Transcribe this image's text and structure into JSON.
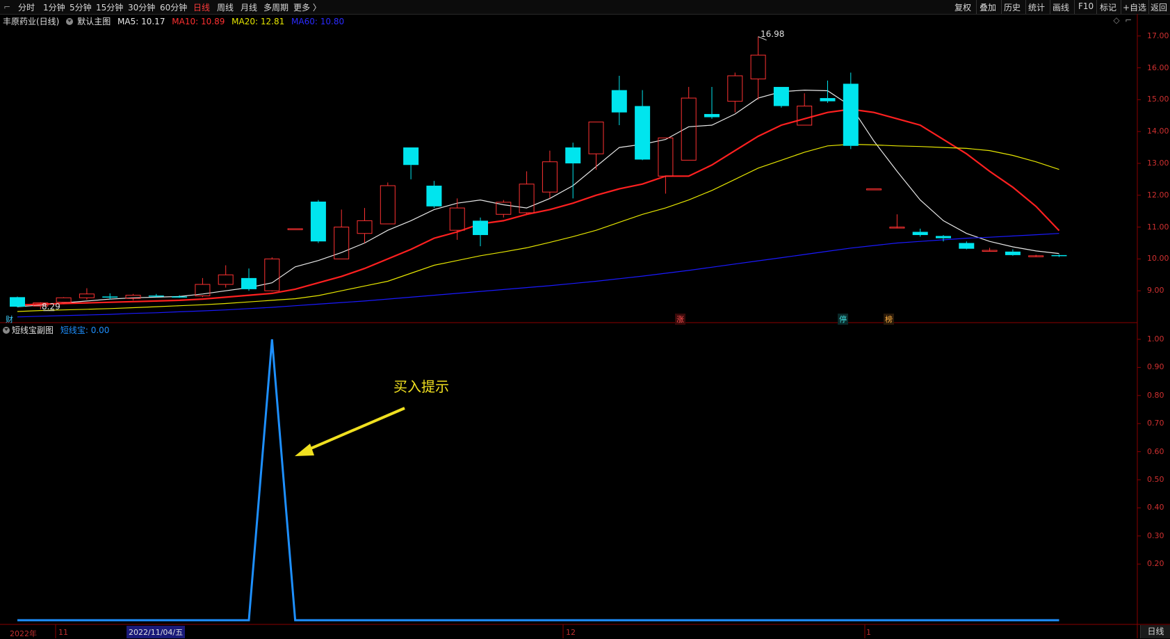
{
  "toolbar": {
    "periods": [
      "分时",
      "1分钟",
      "5分钟",
      "15分钟",
      "30分钟",
      "60分钟",
      "日线",
      "周线",
      "月线",
      "多周期",
      "更多 〉"
    ],
    "active_period": "日线",
    "right_tools": [
      "复权",
      "叠加",
      "历史",
      "统计",
      "画线",
      "F10",
      "标记",
      "+自选",
      "返回"
    ]
  },
  "main_chart": {
    "title": "丰原药业(日线)",
    "template": "默认主图",
    "ma5": "MA5: 10.17",
    "ma10": "MA10: 10.89",
    "ma20": "MA20: 12.81",
    "ma60": "MA60: 10.80",
    "high_label": "16.98",
    "low_label": "8.29",
    "y_ticks": [
      "17.00",
      "16.00",
      "15.00",
      "14.00",
      "13.00",
      "12.00",
      "11.00",
      "10.00",
      "9.00"
    ],
    "markers": {
      "cai": "财",
      "zhang": "涨",
      "ting": "停",
      "bang": "榜"
    }
  },
  "sub_chart": {
    "title": "短线宝副图",
    "value_label": "短线宝: 0.00",
    "y_ticks": [
      "1.00",
      "0.90",
      "0.80",
      "0.70",
      "0.60",
      "0.50",
      "0.40",
      "0.30",
      "0.20"
    ],
    "annotation": "买入提示"
  },
  "date_axis": {
    "year": "2022年",
    "m11": "11",
    "cursor_date": "2022/11/04/五",
    "m12": "12",
    "m1": "1"
  },
  "period_tab": "日线",
  "colors": {
    "up": "#ff3232",
    "down": "#00e5ee",
    "ma5": "#e8e8e8",
    "ma10": "#ff2020",
    "ma20": "#e6e600",
    "ma60": "#1a1aff",
    "indicator": "#1e90ff"
  },
  "chart_data": [
    {
      "type": "candlestick",
      "title": "丰原药业(日线)",
      "ylim": [
        8.0,
        17.3
      ],
      "candles": [
        {
          "o": 8.8,
          "h": 8.82,
          "l": 8.48,
          "c": 8.5
        },
        {
          "o": 8.52,
          "h": 8.64,
          "l": 8.42,
          "c": 8.62
        },
        {
          "o": 8.64,
          "h": 8.8,
          "l": 8.58,
          "c": 8.78
        },
        {
          "o": 8.78,
          "h": 9.08,
          "l": 8.72,
          "c": 8.9
        },
        {
          "o": 8.82,
          "h": 8.92,
          "l": 8.72,
          "c": 8.8
        },
        {
          "o": 8.76,
          "h": 8.9,
          "l": 8.7,
          "c": 8.86
        },
        {
          "o": 8.85,
          "h": 8.9,
          "l": 8.8,
          "c": 8.83
        },
        {
          "o": 8.82,
          "h": 8.86,
          "l": 8.78,
          "c": 8.8
        },
        {
          "o": 8.84,
          "h": 9.4,
          "l": 8.8,
          "c": 9.2
        },
        {
          "o": 9.2,
          "h": 9.8,
          "l": 9.1,
          "c": 9.5
        },
        {
          "o": 9.4,
          "h": 9.7,
          "l": 9.0,
          "c": 9.05
        },
        {
          "o": 9.0,
          "h": 10.05,
          "l": 8.98,
          "c": 10.0
        },
        {
          "o": 10.95,
          "h": 10.95,
          "l": 10.95,
          "c": 10.95
        },
        {
          "o": 11.8,
          "h": 11.85,
          "l": 10.5,
          "c": 10.55
        },
        {
          "o": 10.0,
          "h": 11.55,
          "l": 10.0,
          "c": 11.0
        },
        {
          "o": 10.8,
          "h": 11.6,
          "l": 10.5,
          "c": 11.2
        },
        {
          "o": 11.1,
          "h": 12.4,
          "l": 11.1,
          "c": 12.3
        },
        {
          "o": 13.5,
          "h": 13.5,
          "l": 12.5,
          "c": 12.95
        },
        {
          "o": 12.3,
          "h": 12.45,
          "l": 11.6,
          "c": 11.65
        },
        {
          "o": 10.9,
          "h": 11.9,
          "l": 10.6,
          "c": 11.6
        },
        {
          "o": 11.2,
          "h": 11.3,
          "l": 10.4,
          "c": 10.75
        },
        {
          "o": 11.4,
          "h": 11.85,
          "l": 11.3,
          "c": 11.78
        },
        {
          "o": 11.45,
          "h": 12.75,
          "l": 11.4,
          "c": 12.35
        },
        {
          "o": 12.1,
          "h": 13.4,
          "l": 11.9,
          "c": 13.05
        },
        {
          "o": 13.5,
          "h": 13.65,
          "l": 11.9,
          "c": 13.0
        },
        {
          "o": 13.3,
          "h": 14.3,
          "l": 12.8,
          "c": 14.3
        },
        {
          "o": 15.3,
          "h": 15.75,
          "l": 14.2,
          "c": 14.6
        },
        {
          "o": 14.8,
          "h": 15.3,
          "l": 13.1,
          "c": 13.12
        },
        {
          "o": 12.6,
          "h": 13.8,
          "l": 12.05,
          "c": 13.8
        },
        {
          "o": 13.1,
          "h": 15.4,
          "l": 13.1,
          "c": 15.05
        },
        {
          "o": 14.55,
          "h": 15.4,
          "l": 14.4,
          "c": 14.45
        },
        {
          "o": 14.95,
          "h": 15.85,
          "l": 14.6,
          "c": 15.75
        },
        {
          "o": 15.65,
          "h": 16.98,
          "l": 15.0,
          "c": 16.4
        },
        {
          "o": 15.4,
          "h": 15.4,
          "l": 14.75,
          "c": 14.8
        },
        {
          "o": 14.2,
          "h": 15.2,
          "l": 14.2,
          "c": 14.8
        },
        {
          "o": 15.05,
          "h": 15.6,
          "l": 14.9,
          "c": 14.95
        },
        {
          "o": 15.5,
          "h": 15.85,
          "l": 13.45,
          "c": 13.55
        },
        {
          "o": 12.2,
          "h": 12.2,
          "l": 12.2,
          "c": 12.2
        },
        {
          "o": 11.0,
          "h": 11.4,
          "l": 10.98,
          "c": 11.0
        },
        {
          "o": 10.85,
          "h": 10.95,
          "l": 10.7,
          "c": 10.75
        },
        {
          "o": 10.72,
          "h": 10.75,
          "l": 10.55,
          "c": 10.65
        },
        {
          "o": 10.5,
          "h": 10.55,
          "l": 10.3,
          "c": 10.32
        },
        {
          "o": 10.27,
          "h": 10.35,
          "l": 10.25,
          "c": 10.27
        },
        {
          "o": 10.23,
          "h": 10.3,
          "l": 10.1,
          "c": 10.12
        },
        {
          "o": 10.1,
          "h": 10.13,
          "l": 10.07,
          "c": 10.1
        },
        {
          "o": 10.12,
          "h": 10.14,
          "l": 10.06,
          "c": 10.1
        }
      ],
      "series": [
        {
          "name": "MA5",
          "values": [
            8.5,
            8.55,
            8.62,
            8.68,
            8.74,
            8.78,
            8.8,
            8.82,
            8.9,
            9.0,
            9.1,
            9.25,
            9.75,
            9.95,
            10.2,
            10.5,
            10.9,
            11.2,
            11.55,
            11.75,
            11.85,
            11.7,
            11.6,
            11.9,
            12.3,
            12.9,
            13.5,
            13.6,
            13.75,
            14.15,
            14.2,
            14.55,
            15.05,
            15.25,
            15.3,
            15.28,
            14.8,
            13.7,
            12.75,
            11.85,
            11.2,
            10.8,
            10.55,
            10.38,
            10.25,
            10.17
          ]
        },
        {
          "name": "MA10",
          "values": [
            8.55,
            8.58,
            8.6,
            8.62,
            8.64,
            8.66,
            8.68,
            8.7,
            8.74,
            8.8,
            8.86,
            8.92,
            9.05,
            9.25,
            9.45,
            9.7,
            10.0,
            10.3,
            10.65,
            10.85,
            11.1,
            11.2,
            11.4,
            11.55,
            11.75,
            12.0,
            12.2,
            12.35,
            12.6,
            12.6,
            12.95,
            13.4,
            13.85,
            14.2,
            14.4,
            14.6,
            14.7,
            14.6,
            14.4,
            14.2,
            13.75,
            13.3,
            12.75,
            12.25,
            11.65,
            10.89
          ]
        },
        {
          "name": "MA20",
          "values": [
            8.35,
            8.38,
            8.4,
            8.42,
            8.44,
            8.47,
            8.5,
            8.53,
            8.56,
            8.6,
            8.65,
            8.7,
            8.75,
            8.85,
            9.0,
            9.15,
            9.3,
            9.55,
            9.8,
            9.95,
            10.1,
            10.22,
            10.35,
            10.52,
            10.7,
            10.9,
            11.15,
            11.4,
            11.6,
            11.85,
            12.15,
            12.5,
            12.85,
            13.1,
            13.35,
            13.55,
            13.6,
            13.58,
            13.55,
            13.53,
            13.5,
            13.47,
            13.4,
            13.25,
            13.05,
            12.81
          ]
        },
        {
          "name": "MA60",
          "values": [
            8.18,
            8.2,
            8.22,
            8.24,
            8.26,
            8.29,
            8.31,
            8.34,
            8.37,
            8.4,
            8.44,
            8.48,
            8.53,
            8.58,
            8.63,
            8.68,
            8.74,
            8.8,
            8.86,
            8.92,
            8.98,
            9.04,
            9.1,
            9.16,
            9.23,
            9.3,
            9.38,
            9.46,
            9.55,
            9.64,
            9.74,
            9.84,
            9.94,
            10.04,
            10.14,
            10.24,
            10.34,
            10.42,
            10.5,
            10.55,
            10.6,
            10.65,
            10.68,
            10.72,
            10.76,
            10.8
          ]
        }
      ]
    },
    {
      "type": "line",
      "title": "短线宝副图",
      "ylim": [
        0.0,
        1.05
      ],
      "series": [
        {
          "name": "短线宝",
          "values": [
            0,
            0,
            0,
            0,
            0,
            0,
            0,
            0,
            0,
            0,
            0,
            1,
            0,
            0,
            0,
            0,
            0,
            0,
            0,
            0,
            0,
            0,
            0,
            0,
            0,
            0,
            0,
            0,
            0,
            0,
            0,
            0,
            0,
            0,
            0,
            0,
            0,
            0,
            0,
            0,
            0,
            0,
            0,
            0,
            0,
            0
          ]
        }
      ]
    }
  ]
}
